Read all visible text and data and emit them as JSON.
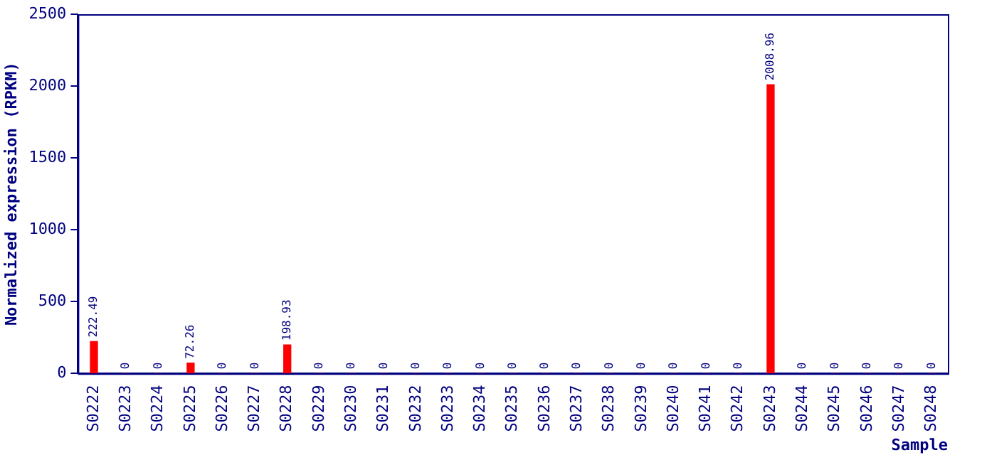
{
  "chart_data": {
    "type": "bar",
    "xlabel": "Sample",
    "ylabel": "Normalized expression (RPKM)",
    "categories": [
      "S0222",
      "S0223",
      "S0224",
      "S0225",
      "S0226",
      "S0227",
      "S0228",
      "S0229",
      "S0230",
      "S0231",
      "S0232",
      "S0233",
      "S0234",
      "S0235",
      "S0236",
      "S0237",
      "S0238",
      "S0239",
      "S0240",
      "S0241",
      "S0242",
      "S0243",
      "S0244",
      "S0245",
      "S0246",
      "S0247",
      "S0248"
    ],
    "values": [
      222.49,
      0,
      0,
      72.26,
      0,
      0,
      198.93,
      0,
      0,
      0,
      0,
      0,
      0,
      0,
      0,
      0,
      0,
      0,
      0,
      0,
      0,
      2008.96,
      0,
      0,
      0,
      0,
      0
    ],
    "color": "#ff0000",
    "ylim": [
      0,
      2500
    ],
    "yticks": [
      0,
      500,
      1000,
      1500,
      2000,
      2500
    ],
    "data_labels": true,
    "grid": false,
    "legend": false
  }
}
